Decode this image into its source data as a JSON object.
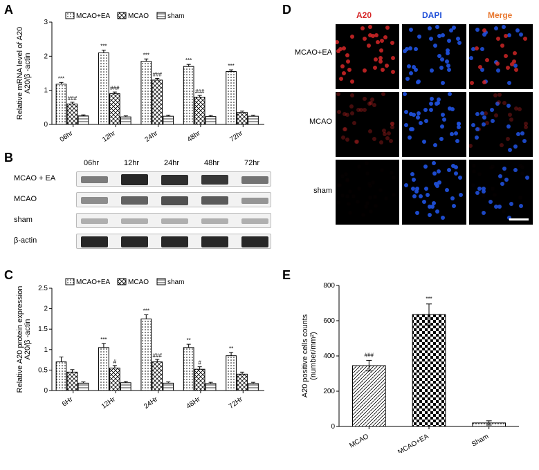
{
  "panels": {
    "A": "A",
    "B": "B",
    "C": "C",
    "D": "D",
    "E": "E"
  },
  "colors": {
    "background": "#ffffff",
    "axis": "#000000",
    "red": "#d62728",
    "blue": "#1f4fd8",
    "orange": "#e8762d",
    "band_dark": "#2a2a2a",
    "band_mid": "#555555",
    "band_light": "#888888"
  },
  "chartA": {
    "ylabel": "Relative mRNA level of A20\nA20/β -actin",
    "ylim": [
      0,
      3
    ],
    "yticks": [
      0,
      1,
      2,
      3
    ],
    "categories": [
      "06hr",
      "12hr",
      "24hr",
      "48hr",
      "72hr"
    ],
    "series": [
      {
        "name": "MCAO+EA",
        "pattern": "dots",
        "values": [
          1.18,
          2.1,
          1.85,
          1.7,
          1.55
        ],
        "err": [
          0.05,
          0.08,
          0.07,
          0.06,
          0.05
        ],
        "sig": [
          "***",
          "***",
          "***",
          "***",
          "***"
        ]
      },
      {
        "name": "MCAO",
        "pattern": "cross",
        "values": [
          0.6,
          0.9,
          1.3,
          0.8,
          0.35
        ],
        "err": [
          0.05,
          0.05,
          0.05,
          0.05,
          0.04
        ],
        "sig": [
          "###",
          "###",
          "###",
          "###",
          ""
        ]
      },
      {
        "name": "sham",
        "pattern": "hlines",
        "values": [
          0.25,
          0.22,
          0.24,
          0.23,
          0.24
        ],
        "err": [
          0.03,
          0.03,
          0.03,
          0.03,
          0.03
        ],
        "sig": [
          "",
          "",
          "",
          "",
          ""
        ]
      }
    ],
    "bar_width": 0.26
  },
  "westernB": {
    "timepoints": [
      "06hr",
      "12hr",
      "24hr",
      "48hr",
      "72hr"
    ],
    "rows": [
      "MCAO + EA",
      "MCAO",
      "sham",
      "β-actin"
    ],
    "intensity": {
      "MCAO + EA": [
        0.45,
        0.95,
        0.9,
        0.85,
        0.5
      ],
      "MCAO": [
        0.35,
        0.6,
        0.7,
        0.65,
        0.3
      ],
      "sham": [
        0.15,
        0.15,
        0.15,
        0.15,
        0.15
      ],
      "β-actin": [
        0.95,
        0.95,
        0.95,
        0.95,
        0.95
      ]
    }
  },
  "chartC": {
    "ylabel": "Relative A20 protein expression\nA20/β -actin",
    "ylim": [
      0,
      2.5
    ],
    "yticks": [
      0.0,
      0.5,
      1.0,
      1.5,
      2.0,
      2.5
    ],
    "categories": [
      "6Hr",
      "12Hr",
      "24Hr",
      "48Hr",
      "72Hr"
    ],
    "series": [
      {
        "name": "MCAO+EA",
        "pattern": "dots",
        "values": [
          0.7,
          1.05,
          1.75,
          1.05,
          0.85
        ],
        "err": [
          0.12,
          0.1,
          0.1,
          0.08,
          0.08
        ],
        "sig": [
          "",
          "***",
          "***",
          "**",
          "**"
        ]
      },
      {
        "name": "MCAO",
        "pattern": "cross",
        "values": [
          0.45,
          0.55,
          0.7,
          0.52,
          0.4
        ],
        "err": [
          0.06,
          0.06,
          0.06,
          0.06,
          0.05
        ],
        "sig": [
          "",
          "#",
          "###",
          "#",
          ""
        ]
      },
      {
        "name": "sham",
        "pattern": "hlines",
        "values": [
          0.18,
          0.19,
          0.18,
          0.17,
          0.17
        ],
        "err": [
          0.03,
          0.03,
          0.03,
          0.03,
          0.03
        ],
        "sig": [
          "",
          "",
          "",
          "",
          ""
        ]
      }
    ],
    "bar_width": 0.26
  },
  "imagingD": {
    "col_labels": [
      "A20",
      "DAPI",
      "Merge"
    ],
    "col_colors": [
      "#d62728",
      "#1f4fd8",
      "#e8762d"
    ],
    "row_labels": [
      "MCAO+EA",
      "MCAO",
      "sham"
    ],
    "signal": {
      "A20": {
        "MCAO+EA": 0.9,
        "MCAO": 0.35,
        "sham": 0.02
      },
      "DAPI": {
        "MCAO+EA": 1.0,
        "MCAO": 1.0,
        "sham": 1.0
      }
    },
    "scalebar": true
  },
  "chartE": {
    "ylabel": "A20 positive cells counts\n(number/mm²)",
    "ylim": [
      0,
      800
    ],
    "yticks": [
      0,
      200,
      400,
      600,
      800
    ],
    "categories": [
      "MCAO",
      "MCAO+EA",
      "Sham"
    ],
    "series": [
      {
        "name": "",
        "patternPerBar": [
          "hatch-diag",
          "checker",
          "dots"
        ],
        "values": [
          345,
          635,
          20
        ],
        "err": [
          30,
          60,
          12
        ],
        "sig": [
          "###",
          "***",
          ""
        ]
      }
    ],
    "bar_width": 0.55
  },
  "legend_labels": {
    "mcao_ea": "MCAO+EA",
    "mcao": "MCAO",
    "sham": "sham"
  }
}
